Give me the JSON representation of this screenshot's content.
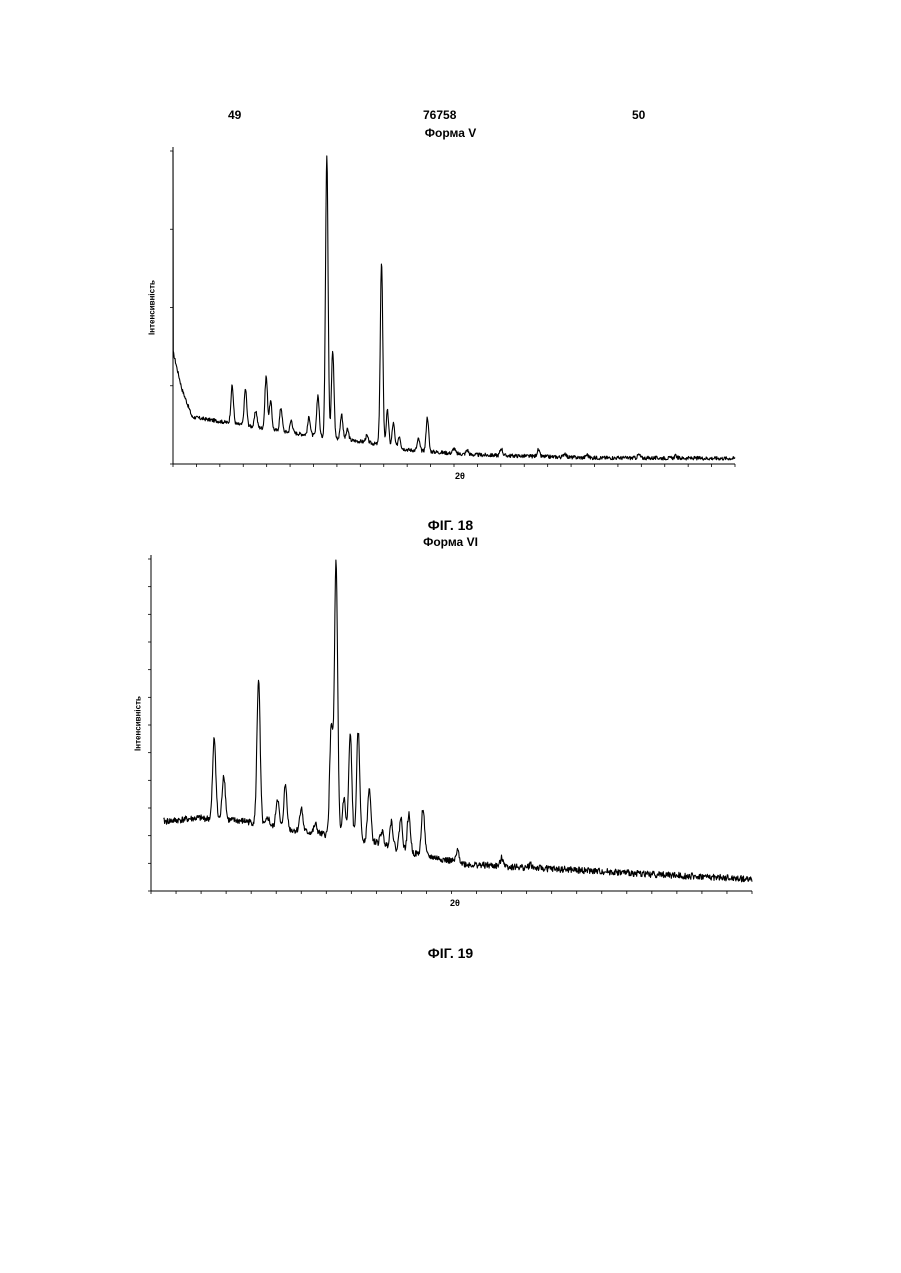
{
  "header": {
    "page_left": "49",
    "patent_number": "76758",
    "page_right": "50"
  },
  "chart_data": [
    {
      "type": "line",
      "title": "Форма V",
      "xlabel": "2θ",
      "ylabel": "Інтенсивність",
      "caption": "ФІГ. 18",
      "x_range": [
        2,
        40
      ],
      "y_range": [
        0,
        100
      ],
      "grid": false,
      "baseline": [
        [
          2,
          36
        ],
        [
          2.6,
          24
        ],
        [
          3.3,
          15
        ],
        [
          6,
          13
        ],
        [
          10,
          10
        ],
        [
          15,
          7
        ],
        [
          18,
          4.5
        ],
        [
          22,
          3
        ],
        [
          30,
          2
        ],
        [
          40,
          1.8
        ]
      ],
      "peaks": [
        {
          "x": 6.0,
          "y": 25
        },
        {
          "x": 6.9,
          "y": 24
        },
        {
          "x": 7.6,
          "y": 17
        },
        {
          "x": 8.3,
          "y": 28
        },
        {
          "x": 8.6,
          "y": 20
        },
        {
          "x": 9.3,
          "y": 18
        },
        {
          "x": 10.0,
          "y": 14
        },
        {
          "x": 11.2,
          "y": 15
        },
        {
          "x": 11.8,
          "y": 22
        },
        {
          "x": 12.4,
          "y": 99
        },
        {
          "x": 12.8,
          "y": 36
        },
        {
          "x": 13.4,
          "y": 16
        },
        {
          "x": 13.8,
          "y": 11
        },
        {
          "x": 15.1,
          "y": 9
        },
        {
          "x": 16.1,
          "y": 64
        },
        {
          "x": 16.5,
          "y": 17
        },
        {
          "x": 16.9,
          "y": 13
        },
        {
          "x": 17.3,
          "y": 9
        },
        {
          "x": 18.6,
          "y": 8
        },
        {
          "x": 19.2,
          "y": 15
        },
        {
          "x": 21.0,
          "y": 5
        },
        {
          "x": 21.9,
          "y": 4.5
        },
        {
          "x": 24.2,
          "y": 5
        },
        {
          "x": 26.7,
          "y": 4.5
        },
        {
          "x": 28.5,
          "y": 3.5
        },
        {
          "x": 30.0,
          "y": 3
        },
        {
          "x": 33.5,
          "y": 3
        },
        {
          "x": 36.0,
          "y": 2.6
        }
      ]
    },
    {
      "type": "line",
      "title": "Форма VI",
      "xlabel": "2θ",
      "ylabel": "Інтенсивність",
      "caption": "ФІГ. 19",
      "x_range": [
        2,
        40
      ],
      "y_range": [
        0,
        100
      ],
      "grid": false,
      "baseline": [
        [
          3,
          21
        ],
        [
          5,
          22
        ],
        [
          8,
          21
        ],
        [
          10,
          19
        ],
        [
          13,
          17
        ],
        [
          16,
          15
        ],
        [
          18,
          12
        ],
        [
          20,
          10
        ],
        [
          22,
          8
        ],
        [
          26,
          7
        ],
        [
          30,
          6
        ],
        [
          34,
          5
        ],
        [
          38,
          4
        ],
        [
          40,
          3.5
        ]
      ],
      "peaks": [
        {
          "x": 6.0,
          "y": 46
        },
        {
          "x": 6.6,
          "y": 35
        },
        {
          "x": 8.8,
          "y": 64
        },
        {
          "x": 9.4,
          "y": 22
        },
        {
          "x": 10.0,
          "y": 28
        },
        {
          "x": 10.5,
          "y": 32
        },
        {
          "x": 11.5,
          "y": 25
        },
        {
          "x": 12.4,
          "y": 20
        },
        {
          "x": 13.4,
          "y": 50
        },
        {
          "x": 13.7,
          "y": 99
        },
        {
          "x": 14.2,
          "y": 28
        },
        {
          "x": 14.6,
          "y": 47
        },
        {
          "x": 15.1,
          "y": 48
        },
        {
          "x": 15.8,
          "y": 31
        },
        {
          "x": 16.6,
          "y": 18
        },
        {
          "x": 17.2,
          "y": 21
        },
        {
          "x": 17.8,
          "y": 22
        },
        {
          "x": 18.3,
          "y": 23
        },
        {
          "x": 19.2,
          "y": 25
        },
        {
          "x": 21.4,
          "y": 12
        },
        {
          "x": 24.2,
          "y": 10
        },
        {
          "x": 26.0,
          "y": 8
        },
        {
          "x": 30.0,
          "y": 6
        },
        {
          "x": 33.5,
          "y": 5
        }
      ]
    }
  ]
}
